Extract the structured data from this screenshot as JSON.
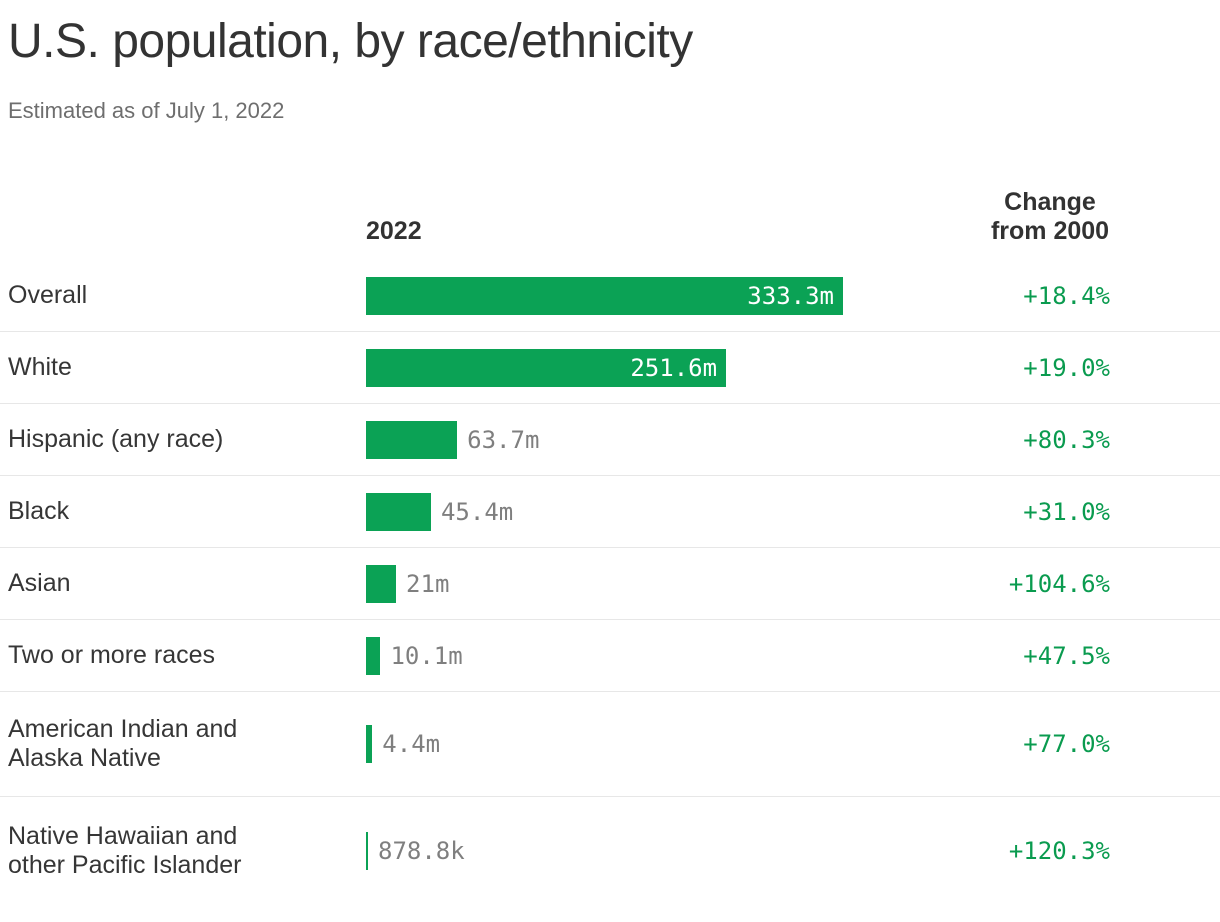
{
  "header": {
    "title": "U.S. population, by race/ethnicity",
    "subtitle": "Estimated as of July 1, 2022"
  },
  "columns": {
    "year_header": "2022",
    "change_header_line1": "Change",
    "change_header_line2": "from 2000"
  },
  "colors": {
    "bar_green": "#0ba255",
    "change_text_green": "#0a9b4f",
    "value_label_gray": "#7f7f7f",
    "divider_gray": "#e7e7e7",
    "title_color": "#333333"
  },
  "chart_data": {
    "type": "bar",
    "orientation": "horizontal",
    "title": "U.S. population, by race/ethnicity",
    "subtitle": "Estimated as of July 1, 2022",
    "series_label": "2022",
    "units": "millions of people",
    "xlim": [
      0,
      333.3
    ],
    "grid": false,
    "categories": [
      "Overall",
      "White",
      "Hispanic (any race)",
      "Black",
      "Asian",
      "Two or more races",
      "American Indian and Alaska Native",
      "Native Hawaiian and other Pacific Islander"
    ],
    "values": [
      333.3,
      251.6,
      63.7,
      45.4,
      21,
      10.1,
      4.4,
      0.8788
    ],
    "value_labels": [
      "333.3m",
      "251.6m",
      "63.7m",
      "45.4m",
      "21m",
      "10.1m",
      "4.4m",
      "878.8k"
    ],
    "changes": [
      "+18.4%",
      "+19.0%",
      "+80.3%",
      "+31.0%",
      "+104.6%",
      "+47.5%",
      "+77.0%",
      "+120.3%"
    ],
    "change_column_header": "Change from 2000"
  }
}
